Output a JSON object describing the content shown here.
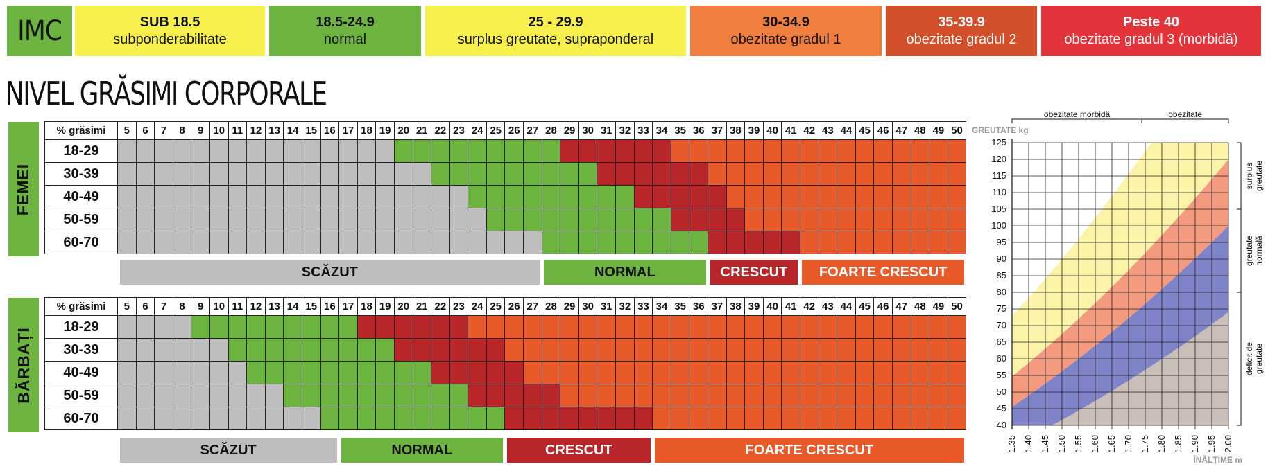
{
  "imc": {
    "label": "IMC",
    "categories": [
      {
        "range": "SUB 18.5",
        "desc": "subponderabilitate",
        "color": "#f7ef4b",
        "text": "#111111"
      },
      {
        "range": "18.5-24.9",
        "desc": "normal",
        "color": "#6db33f",
        "text": "#111111"
      },
      {
        "range": "25 - 29.9",
        "desc": "surplus greutate, supraponderal",
        "color": "#f7ef4b",
        "text": "#111111"
      },
      {
        "range": "30-34.9",
        "desc": "obezitate gradul 1",
        "color": "#ef7e3f",
        "text": "#111111"
      },
      {
        "range": "35-39.9",
        "desc": "obezitate gradul 2",
        "color": "#d24f2a",
        "text": "#ffffff"
      },
      {
        "range": "Peste 40",
        "desc": "obezitate gradul 3 (morbidă)",
        "color": "#e2343a",
        "text": "#ffffff"
      }
    ]
  },
  "body_fat": {
    "title": "NIVEL GRĂSIMI CORPORALE",
    "header_label": "% grăsimi",
    "percent_columns": [
      5,
      6,
      7,
      8,
      9,
      10,
      11,
      12,
      13,
      14,
      15,
      16,
      17,
      18,
      19,
      20,
      21,
      22,
      23,
      24,
      25,
      26,
      27,
      28,
      29,
      30,
      31,
      32,
      33,
      34,
      35,
      36,
      37,
      38,
      39,
      40,
      41,
      42,
      43,
      44,
      45,
      46,
      47,
      48,
      49,
      50
    ],
    "colors": {
      "scazut": "#bebebe",
      "normal": "#6db33f",
      "crescut": "#b82629",
      "foarte_crescut": "#e85a29"
    },
    "women": {
      "label": "FEMEI",
      "rows": [
        {
          "age": "18-29",
          "normal_from": 20,
          "crescut_from": 29,
          "foarte_from": 35
        },
        {
          "age": "30-39",
          "normal_from": 22,
          "crescut_from": 31,
          "foarte_from": 37
        },
        {
          "age": "40-49",
          "normal_from": 24,
          "crescut_from": 33,
          "foarte_from": 38
        },
        {
          "age": "50-59",
          "normal_from": 25,
          "crescut_from": 35,
          "foarte_from": 39
        },
        {
          "age": "60-70",
          "normal_from": 28,
          "crescut_from": 37,
          "foarte_from": 42
        }
      ],
      "legend": [
        "SCĂZUT",
        "NORMAL",
        "CRESCUT",
        "FOARTE CRESCUT"
      ]
    },
    "men": {
      "label": "BĂRBAȚI",
      "rows": [
        {
          "age": "18-29",
          "normal_from": 9,
          "crescut_from": 18,
          "foarte_from": 24
        },
        {
          "age": "30-39",
          "normal_from": 11,
          "crescut_from": 20,
          "foarte_from": 26
        },
        {
          "age": "40-49",
          "normal_from": 12,
          "crescut_from": 22,
          "foarte_from": 27
        },
        {
          "age": "50-59",
          "normal_from": 14,
          "crescut_from": 24,
          "foarte_from": 29
        },
        {
          "age": "60-70",
          "normal_from": 16,
          "crescut_from": 26,
          "foarte_from": 34
        }
      ],
      "legend": [
        "SCĂZUT",
        "NORMAL",
        "CRESCUT",
        "FOARTE CRESCUT"
      ]
    }
  },
  "chart_data": {
    "type": "area",
    "ylabel": "GREUTATE kg",
    "xlabel": "ÎNĂLȚIME m",
    "x": [
      1.35,
      1.4,
      1.45,
      1.5,
      1.55,
      1.6,
      1.65,
      1.7,
      1.75,
      1.8,
      1.85,
      1.9,
      1.95,
      2.0
    ],
    "ylim": [
      40,
      125
    ],
    "xlim": [
      1.35,
      2.0
    ],
    "y_ticks": [
      40,
      45,
      50,
      55,
      60,
      65,
      70,
      75,
      80,
      85,
      90,
      95,
      100,
      105,
      110,
      115,
      120,
      125
    ],
    "grid": true,
    "series": [
      {
        "bmi_from": 0,
        "bmi_to": 18.5,
        "color": "#c9beb8"
      },
      {
        "bmi_from": 18.5,
        "bmi_to": 25,
        "color": "#7f84c8"
      },
      {
        "bmi_from": 25,
        "bmi_to": 30,
        "color": "#f39a7f"
      },
      {
        "bmi_from": 30,
        "bmi_to": 40,
        "color": "#fbf4a8"
      }
    ],
    "top_labels": [
      "obezitate morbidă",
      "obezitate"
    ],
    "side_labels": [
      "surplus greutate",
      "greutate normală",
      "deficit de greutate"
    ]
  }
}
